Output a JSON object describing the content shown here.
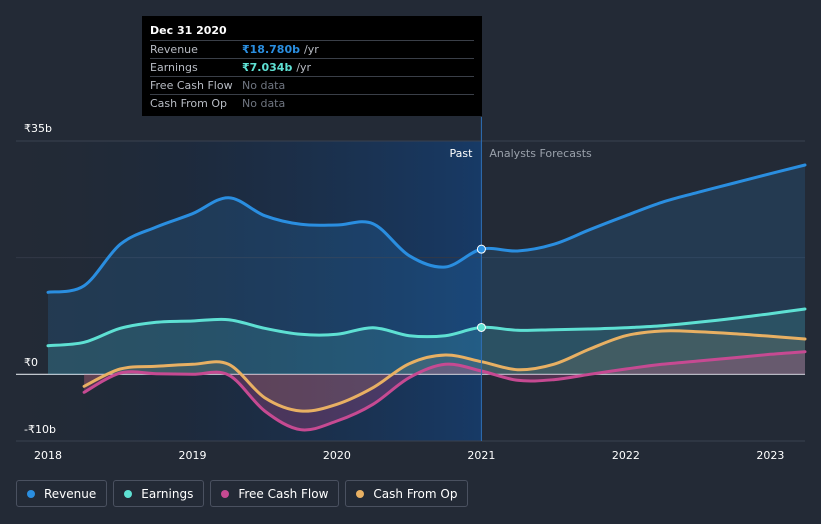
{
  "chart_data": {
    "type": "area",
    "title": "",
    "xlabel": "",
    "ylabel": "",
    "ylim": [
      -10,
      35
    ],
    "xlim": [
      2018,
      2023.24
    ],
    "y_ticks": [
      {
        "label": "₹35b",
        "value": 35
      },
      {
        "label": "₹0",
        "value": 0
      },
      {
        "label": "-₹10b",
        "value": -10
      }
    ],
    "x_ticks": [
      {
        "label": "2018",
        "value": 2018
      },
      {
        "label": "2019",
        "value": 2019
      },
      {
        "label": "2020",
        "value": 2020
      },
      {
        "label": "2021",
        "value": 2021
      },
      {
        "label": "2022",
        "value": 2022
      },
      {
        "label": "2023",
        "value": 2023
      }
    ],
    "past_label": "Past",
    "forecast_label": "Analysts Forecasts",
    "divider_x": 2021,
    "series": [
      {
        "name": "Revenue",
        "color": "#2a8ee0",
        "points": [
          [
            2018,
            12.3
          ],
          [
            2018.25,
            13.3
          ],
          [
            2018.5,
            19.5
          ],
          [
            2018.75,
            22.1
          ],
          [
            2019,
            24.1
          ],
          [
            2019.25,
            26.5
          ],
          [
            2019.5,
            23.8
          ],
          [
            2019.75,
            22.5
          ],
          [
            2020,
            22.4
          ],
          [
            2020.25,
            22.6
          ],
          [
            2020.5,
            17.8
          ],
          [
            2020.75,
            16.1
          ],
          [
            2021,
            18.78
          ],
          [
            2021.25,
            18.5
          ],
          [
            2021.5,
            19.5
          ],
          [
            2021.75,
            21.7
          ],
          [
            2022,
            23.8
          ],
          [
            2022.25,
            25.8
          ],
          [
            2022.5,
            27.3
          ],
          [
            2022.75,
            28.7
          ],
          [
            2023,
            30.1
          ],
          [
            2023.24,
            31.4
          ]
        ]
      },
      {
        "name": "Earnings",
        "color": "#5ee0d3",
        "points": [
          [
            2018,
            4.3
          ],
          [
            2018.25,
            4.8
          ],
          [
            2018.5,
            6.9
          ],
          [
            2018.75,
            7.8
          ],
          [
            2019,
            8.0
          ],
          [
            2019.25,
            8.2
          ],
          [
            2019.5,
            6.9
          ],
          [
            2019.75,
            6.0
          ],
          [
            2020,
            6.0
          ],
          [
            2020.25,
            7.0
          ],
          [
            2020.5,
            5.8
          ],
          [
            2020.75,
            5.8
          ],
          [
            2021,
            7.034
          ],
          [
            2021.25,
            6.6
          ],
          [
            2021.5,
            6.7
          ],
          [
            2021.75,
            6.8
          ],
          [
            2022,
            7.0
          ],
          [
            2022.25,
            7.3
          ],
          [
            2022.5,
            7.8
          ],
          [
            2022.75,
            8.4
          ],
          [
            2023,
            9.1
          ],
          [
            2023.24,
            9.8
          ]
        ]
      },
      {
        "name": "Free Cash Flow",
        "color": "#c64a92",
        "points": [
          [
            2018.25,
            -2.7
          ],
          [
            2018.5,
            0.2
          ],
          [
            2018.75,
            0.1
          ],
          [
            2019,
            0.0
          ],
          [
            2019.25,
            -0.1
          ],
          [
            2019.5,
            -5.5
          ],
          [
            2019.75,
            -8.3
          ],
          [
            2020,
            -7.0
          ],
          [
            2020.25,
            -4.5
          ],
          [
            2020.5,
            -0.5
          ],
          [
            2020.75,
            1.5
          ],
          [
            2021,
            0.5
          ],
          [
            2021.25,
            -0.9
          ],
          [
            2021.5,
            -0.8
          ],
          [
            2021.75,
            0.0
          ],
          [
            2022,
            0.8
          ],
          [
            2022.25,
            1.5
          ],
          [
            2022.5,
            2.0
          ],
          [
            2022.75,
            2.5
          ],
          [
            2023,
            3.0
          ],
          [
            2023.24,
            3.4
          ]
        ]
      },
      {
        "name": "Cash From Op",
        "color": "#e8b063",
        "points": [
          [
            2018.25,
            -1.8
          ],
          [
            2018.5,
            0.8
          ],
          [
            2018.75,
            1.2
          ],
          [
            2019,
            1.5
          ],
          [
            2019.25,
            1.5
          ],
          [
            2019.5,
            -3.5
          ],
          [
            2019.75,
            -5.5
          ],
          [
            2020,
            -4.5
          ],
          [
            2020.25,
            -2.0
          ],
          [
            2020.5,
            1.6
          ],
          [
            2020.75,
            2.9
          ],
          [
            2021,
            1.9
          ],
          [
            2021.25,
            0.7
          ],
          [
            2021.5,
            1.5
          ],
          [
            2021.75,
            3.8
          ],
          [
            2022,
            5.8
          ],
          [
            2022.25,
            6.5
          ],
          [
            2022.5,
            6.4
          ],
          [
            2022.75,
            6.1
          ],
          [
            2023,
            5.7
          ],
          [
            2023.24,
            5.3
          ]
        ]
      }
    ]
  },
  "tooltip": {
    "date": "Dec 31 2020",
    "rows": [
      {
        "label": "Revenue",
        "value": "₹18.780b",
        "unit": "/yr",
        "color": "#2a8ee0"
      },
      {
        "label": "Earnings",
        "value": "₹7.034b",
        "unit": "/yr",
        "color": "#5ee0d3"
      },
      {
        "label": "Free Cash Flow",
        "value": "No data",
        "unit": "",
        "color": ""
      },
      {
        "label": "Cash From Op",
        "value": "No data",
        "unit": "",
        "color": ""
      }
    ]
  },
  "legend": [
    {
      "label": "Revenue",
      "color": "#2a8ee0"
    },
    {
      "label": "Earnings",
      "color": "#5ee0d3"
    },
    {
      "label": "Free Cash Flow",
      "color": "#c64a92"
    },
    {
      "label": "Cash From Op",
      "color": "#e8b063"
    }
  ]
}
